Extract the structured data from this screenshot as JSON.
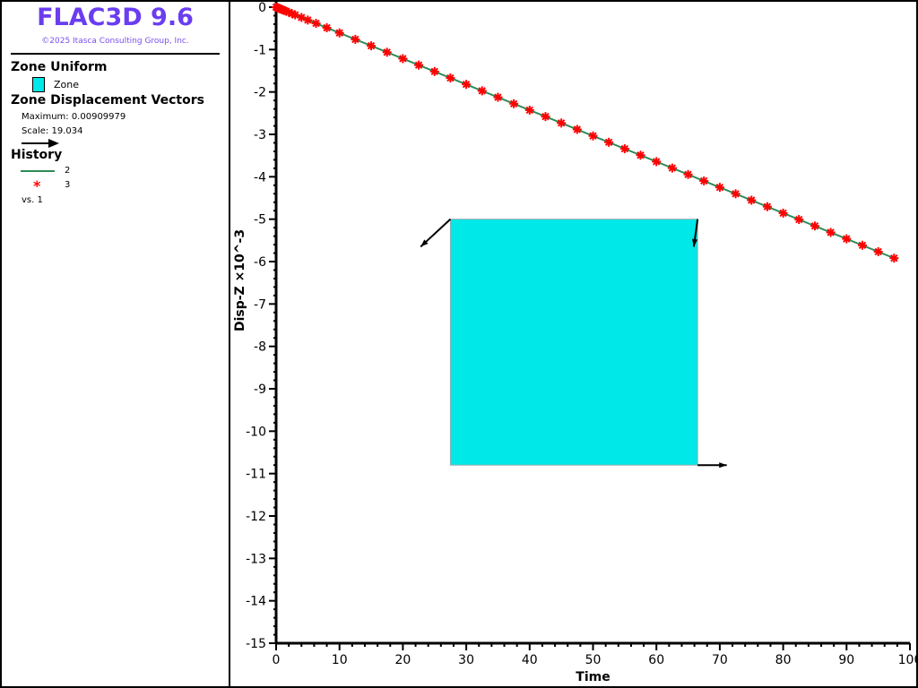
{
  "legend": {
    "app_title": "FLAC3D 9.6",
    "copyright": "©2025 Itasca Consulting Group, Inc.",
    "zone_uniform_heading": "Zone Uniform",
    "zone_label": "Zone",
    "zone_color": "#00e8e8",
    "vectors_heading": "Zone Displacement Vectors",
    "maximum": "Maximum: 0.00909979",
    "scale": "Scale: 19.034",
    "history_heading": "History",
    "history_items": [
      {
        "label": "2",
        "style": "line",
        "color": "#2e8b57"
      },
      {
        "label": "3",
        "style": "asterisk-marker",
        "color": "#ff0000"
      }
    ],
    "vs": "vs. 1"
  },
  "chart_data": {
    "type": "line",
    "xlabel": "Time",
    "ylabel": "Disp-Z ×10^-3",
    "xlim": [
      0,
      100
    ],
    "ylim": [
      -15,
      0
    ],
    "xticks": [
      "0",
      "10",
      "20",
      "30",
      "40",
      "50",
      "60",
      "70",
      "80",
      "90",
      "100"
    ],
    "yticks": [
      "0",
      "-1",
      "-2",
      "-3",
      "-4",
      "-5",
      "-6",
      "-7",
      "-8",
      "-9",
      "-10",
      "-11",
      "-12",
      "-13",
      "-14",
      "-15"
    ],
    "grid": false,
    "series": [
      {
        "name": "2",
        "style": "line",
        "color": "#2e8b57",
        "x": [
          0,
          98
        ],
        "y": [
          0,
          -5.95
        ]
      },
      {
        "name": "3",
        "style": "asterisk",
        "color": "#ff0000",
        "x": [
          0,
          0.2,
          0.4,
          0.6,
          0.8,
          1,
          1.3,
          1.6,
          2,
          2.5,
          3,
          4,
          5,
          6.3,
          8,
          10,
          12.5,
          15,
          17.5,
          20,
          22.5,
          25,
          27.5,
          30,
          32.5,
          35,
          37.5,
          40,
          42.5,
          45,
          47.5,
          50,
          52.5,
          55,
          57.5,
          60,
          62.5,
          65,
          67.5,
          70,
          72.5,
          75,
          77.5,
          80,
          82.5,
          85,
          87.5,
          90,
          92.5,
          95,
          97.5
        ],
        "y": [
          0,
          -0.012,
          -0.024,
          -0.036,
          -0.049,
          -0.061,
          -0.079,
          -0.097,
          -0.121,
          -0.152,
          -0.182,
          -0.243,
          -0.304,
          -0.382,
          -0.486,
          -0.607,
          -0.759,
          -0.911,
          -1.063,
          -1.214,
          -1.366,
          -1.518,
          -1.67,
          -1.821,
          -1.973,
          -2.125,
          -2.277,
          -2.429,
          -2.58,
          -2.732,
          -2.884,
          -3.036,
          -3.187,
          -3.339,
          -3.491,
          -3.643,
          -3.794,
          -3.946,
          -4.098,
          -4.25,
          -4.401,
          -4.553,
          -4.705,
          -4.857,
          -5.008,
          -5.16,
          -5.312,
          -5.464,
          -5.615,
          -5.767,
          -5.919
        ]
      }
    ],
    "zone_box": {
      "x": [
        27.5,
        66.5
      ],
      "y": [
        -5.0,
        -10.8
      ],
      "color": "#00e8e8"
    },
    "vectors": [
      {
        "from": [
          27.5,
          -5.0
        ],
        "to": [
          22.8,
          -5.65
        ]
      },
      {
        "from": [
          66.5,
          -5.0
        ],
        "to": [
          65.9,
          -5.65
        ]
      },
      {
        "from": [
          66.5,
          -10.8
        ],
        "to": [
          71.1,
          -10.8
        ]
      }
    ]
  }
}
